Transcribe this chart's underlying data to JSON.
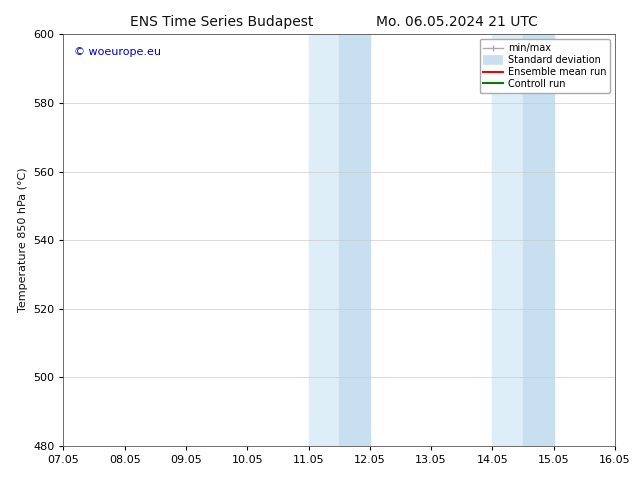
{
  "title_left": "ENS Time Series Budapest",
  "title_right": "Mo. 06.05.2024 21 UTC",
  "ylabel": "Temperature 850 hPa (°C)",
  "xlim_start": 0,
  "xlim_end": 9,
  "ylim": [
    480,
    600
  ],
  "yticks": [
    480,
    500,
    520,
    540,
    560,
    580,
    600
  ],
  "xtick_labels": [
    "07.05",
    "08.05",
    "09.05",
    "10.05",
    "11.05",
    "12.05",
    "13.05",
    "14.05",
    "15.05",
    "16.05"
  ],
  "shaded_regions": [
    {
      "xstart": 4.0,
      "xend": 4.5,
      "color": "#ddeef8"
    },
    {
      "xstart": 4.5,
      "xend": 5.0,
      "color": "#c8dff0"
    },
    {
      "xstart": 7.0,
      "xend": 7.5,
      "color": "#ddeef8"
    },
    {
      "xstart": 7.5,
      "xend": 8.0,
      "color": "#c8dff0"
    }
  ],
  "watermark_text": "© woeurope.eu",
  "watermark_color": "#0000cc",
  "background_color": "#ffffff",
  "legend_items": [
    {
      "label": "min/max"
    },
    {
      "label": "Standard deviation"
    },
    {
      "label": "Ensemble mean run"
    },
    {
      "label": "Controll run"
    }
  ],
  "legend_colors": [
    "#999999",
    "#c8dff0",
    "red",
    "green"
  ],
  "grid_color": "#cccccc",
  "font_color": "#111111",
  "title_fontsize": 10,
  "label_fontsize": 8,
  "tick_fontsize": 8
}
